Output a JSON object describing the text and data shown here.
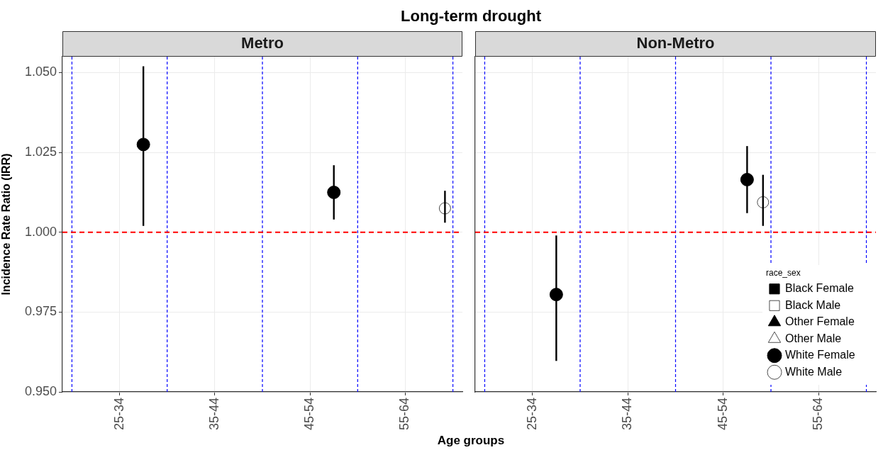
{
  "chart_data": [
    {
      "type": "scatter",
      "title": "Long-term drought",
      "subtitle": "Metro",
      "xlabel": "Age groups",
      "ylabel": "Incidence Rate Ratio (IRR)",
      "categories": [
        "25-34",
        "35-44",
        "45-54",
        "55-64"
      ],
      "ylim": [
        0.95,
        1.055
      ],
      "yticks": [
        {
          "value": 0.95,
          "label": "0.950"
        },
        {
          "value": 0.975,
          "label": "0.975"
        },
        {
          "value": 1,
          "label": "1.000"
        },
        {
          "value": 1.025,
          "label": "1.025"
        },
        {
          "value": 1.05,
          "label": "1.050"
        }
      ],
      "series": [
        {
          "color": "#000000",
          "marker": "square",
          "values": [
            null,
            null,
            null,
            null
          ]
        },
        {
          "color": "#000000",
          "marker": "square",
          "values": [
            null,
            null,
            null,
            null
          ]
        },
        {
          "color": "#000000",
          "marker": "triangle",
          "values": [
            null,
            null,
            null,
            null
          ]
        },
        {
          "color": "#000000",
          "marker": "triangle",
          "values": [
            null,
            null,
            null,
            null
          ]
        },
        {
          "color": "#000000",
          "marker": "circle",
          "values": [
            1.0275,
            null,
            1.0125,
            null
          ],
          "errors": [
            [
              1.002,
              1.052
            ],
            null,
            [
              1.004,
              1.021
            ],
            null
          ]
        },
        {
          "color": "#000000",
          "marker": "circle",
          "values": [
            null,
            null,
            null,
            1.0075
          ],
          "errors": [
            null,
            null,
            null,
            [
              1.003,
              1.013
            ]
          ]
        }
      ],
      "ref_lines": [
        {
          "axis": "y",
          "value": 1,
          "color": "#ff0000",
          "line_style": "dashed"
        }
      ],
      "grid": true
    },
    {
      "type": "scatter",
      "subtitle": "Non-Metro",
      "legend_title": "race_sex",
      "legend": "bottom right",
      "tick_labels": "x",
      "categories": [
        "25-34",
        "35-44",
        "45-54",
        "55-64"
      ],
      "ylim": [
        0.95,
        1.055
      ],
      "yticks": [
        0.95,
        0.975,
        1,
        1.025,
        1.05
      ],
      "series": [
        {
          "name": "Black Female",
          "color": "#000000",
          "marker": "square",
          "values": [
            null,
            null,
            null,
            null
          ]
        },
        {
          "name": "Black Male",
          "color": "#000000",
          "marker": "square",
          "values": [
            null,
            null,
            null,
            null
          ]
        },
        {
          "name": "Other Female",
          "color": "#000000",
          "marker": "triangle",
          "values": [
            null,
            null,
            null,
            null
          ]
        },
        {
          "name": "Other Male",
          "color": "#000000",
          "marker": "triangle",
          "values": [
            null,
            null,
            null,
            null
          ]
        },
        {
          "name": "White Female",
          "color": "#000000",
          "marker": "circle",
          "values": [
            0.9805,
            null,
            1.0165,
            null
          ],
          "errors": [
            [
              0.9597,
              0.999
            ],
            null,
            [
              1.006,
              1.027
            ],
            null
          ]
        },
        {
          "name": "White Male",
          "color": "#000000",
          "marker": "circle",
          "values": [
            null,
            null,
            1.0094,
            null
          ],
          "errors": [
            null,
            null,
            [
              1.002,
              1.018
            ],
            null
          ]
        }
      ],
      "ref_lines": [
        {
          "axis": "y",
          "value": 1,
          "color": "#ff0000",
          "line_style": "dashed"
        }
      ],
      "grid": true
    }
  ]
}
